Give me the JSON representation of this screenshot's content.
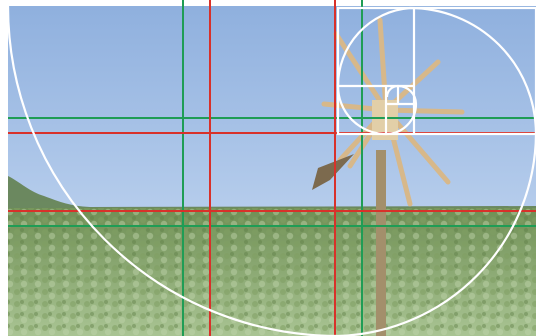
{
  "scene": {
    "sky_top_color": "#8fb0de",
    "sky_bottom_color": "#b6cdec",
    "vineyard_dark_color": "#6f8f55",
    "vineyard_light_color": "#a9c493",
    "pole_color": "#a38f6b",
    "blade_color": "#d7b88a"
  },
  "overlay": {
    "rule_of_thirds_color": "#1f9d55",
    "golden_ratio_color": "#d8312a",
    "spiral_color": "#ffffff"
  }
}
